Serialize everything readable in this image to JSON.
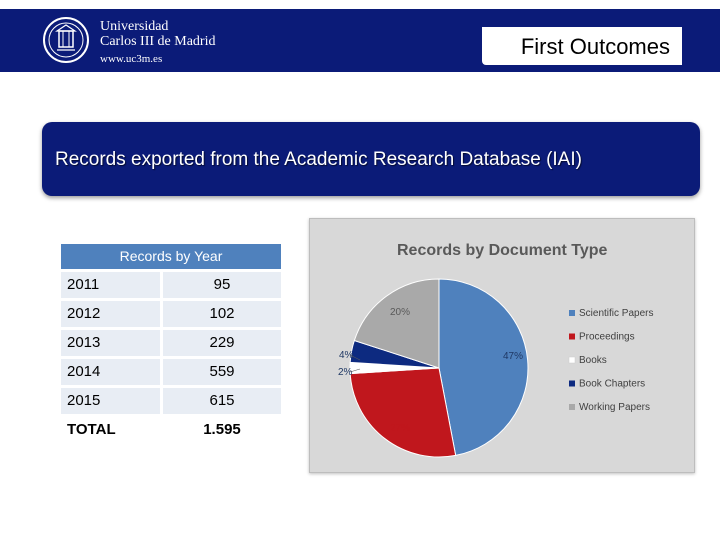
{
  "header": {
    "logo_line1": "Universidad",
    "logo_line2": "Carlos III de Madrid",
    "logo_line3": "www.uc3m.es",
    "title": "First Outcomes"
  },
  "banner": {
    "text": "Records exported from the Academic Research Database (IAI)"
  },
  "table": {
    "header": "Records by Year",
    "rows": [
      {
        "year": "2011",
        "count": "95"
      },
      {
        "year": "2012",
        "count": "102"
      },
      {
        "year": "2013",
        "count": "229"
      },
      {
        "year": "2014",
        "count": "559"
      },
      {
        "year": "2015",
        "count": "615"
      },
      {
        "year": "TOTAL",
        "count": "1.595"
      }
    ]
  },
  "colors": {
    "navy": "#0b1b78",
    "table_header": "#4f81bd",
    "scientific": "#4f81bd",
    "proceedings": "#c0171d",
    "books": "#ffffff",
    "chapters": "#0d2a80",
    "working": "#a9a9a9"
  },
  "chart_data": {
    "type": "pie",
    "title": "Records by Document Type",
    "legend_position": "right",
    "slices": [
      {
        "name": "Scientific Papers",
        "value": 47,
        "label": "47%",
        "color": "#4f81bd"
      },
      {
        "name": "Proceedings",
        "value": 27,
        "label": "27%",
        "color": "#c0171d"
      },
      {
        "name": "Books",
        "value": 2,
        "label": "2%",
        "color": "#ffffff"
      },
      {
        "name": "Book Chapters",
        "value": 4,
        "label": "4%",
        "color": "#0d2a80"
      },
      {
        "name": "Working Papers",
        "value": 20,
        "label": "20%",
        "color": "#a9a9a9"
      }
    ]
  }
}
